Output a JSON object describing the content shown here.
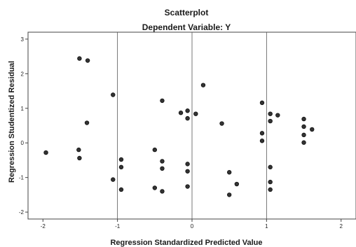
{
  "chart_data": {
    "type": "scatter",
    "title": "Scatterplot",
    "subtitle": "Dependent Variable: Y",
    "xlabel": "Regression Standardized Predicted Value",
    "ylabel": "Regression Studentized Residual",
    "xlim": [
      -2.2,
      2.2
    ],
    "ylim": [
      -2.2,
      3.2
    ],
    "xticks": [
      -2,
      -1,
      0,
      1,
      2
    ],
    "yticks": [
      -2,
      -1,
      0,
      1,
      2,
      3
    ],
    "xtick_labels": [
      "-2",
      "-1",
      "0",
      "1",
      "2"
    ],
    "ytick_labels": [
      "-2",
      "-1",
      "0",
      "1",
      "2",
      "3"
    ],
    "vertical_gridlines_at": [
      -1,
      0,
      1
    ],
    "grid": false,
    "legend": false,
    "point_color": "#333333",
    "points": [
      {
        "x": -1.96,
        "y": -0.28
      },
      {
        "x": -1.51,
        "y": 2.44
      },
      {
        "x": -1.4,
        "y": 2.38
      },
      {
        "x": -1.52,
        "y": -0.2
      },
      {
        "x": -1.51,
        "y": -0.44
      },
      {
        "x": -1.41,
        "y": 0.58
      },
      {
        "x": -1.06,
        "y": 1.39
      },
      {
        "x": -1.06,
        "y": -1.06
      },
      {
        "x": -0.95,
        "y": -0.48
      },
      {
        "x": -0.95,
        "y": -0.7
      },
      {
        "x": -0.95,
        "y": -1.35
      },
      {
        "x": -0.5,
        "y": -0.2
      },
      {
        "x": -0.5,
        "y": -1.3
      },
      {
        "x": -0.4,
        "y": 1.22
      },
      {
        "x": -0.4,
        "y": -0.53
      },
      {
        "x": -0.4,
        "y": -0.74
      },
      {
        "x": -0.4,
        "y": -1.4
      },
      {
        "x": -0.15,
        "y": 0.87
      },
      {
        "x": -0.06,
        "y": 0.93
      },
      {
        "x": -0.06,
        "y": 0.71
      },
      {
        "x": -0.06,
        "y": -0.61
      },
      {
        "x": -0.06,
        "y": -0.82
      },
      {
        "x": -0.06,
        "y": -1.26
      },
      {
        "x": 0.05,
        "y": 0.84
      },
      {
        "x": 0.15,
        "y": 1.67
      },
      {
        "x": 0.4,
        "y": 0.56
      },
      {
        "x": 0.5,
        "y": -0.85
      },
      {
        "x": 0.5,
        "y": -1.5
      },
      {
        "x": 0.6,
        "y": -1.19
      },
      {
        "x": 0.94,
        "y": 1.16
      },
      {
        "x": 0.94,
        "y": 0.28
      },
      {
        "x": 0.94,
        "y": 0.06
      },
      {
        "x": 1.05,
        "y": 0.84
      },
      {
        "x": 1.05,
        "y": 0.63
      },
      {
        "x": 1.05,
        "y": -0.7
      },
      {
        "x": 1.05,
        "y": -1.13
      },
      {
        "x": 1.05,
        "y": -1.35
      },
      {
        "x": 1.15,
        "y": 0.8
      },
      {
        "x": 1.5,
        "y": 0.69
      },
      {
        "x": 1.5,
        "y": 0.47
      },
      {
        "x": 1.5,
        "y": 0.23
      },
      {
        "x": 1.5,
        "y": 0.01
      },
      {
        "x": 1.61,
        "y": 0.39
      }
    ]
  }
}
